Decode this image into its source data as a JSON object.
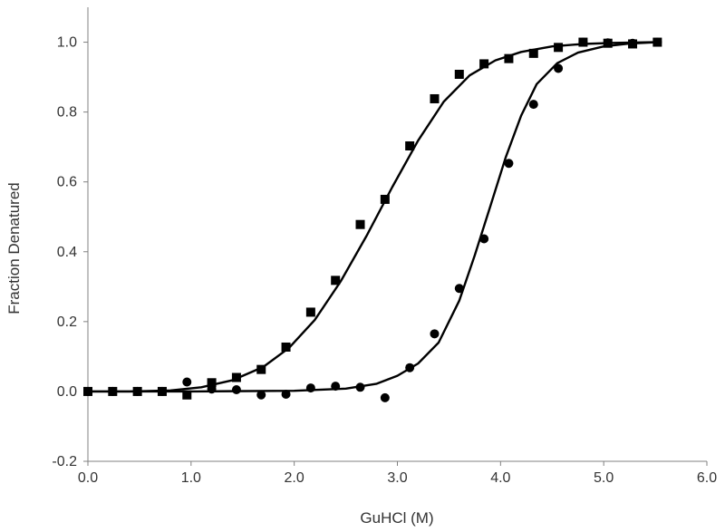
{
  "chart_data": {
    "type": "scatter",
    "title": "",
    "xlabel": "GuHCl (M)",
    "ylabel": "Fraction Denatured",
    "xlim": [
      0.0,
      6.0
    ],
    "ylim": [
      -0.2,
      1.1
    ],
    "xticks": [
      0.0,
      1.0,
      2.0,
      3.0,
      4.0,
      5.0,
      6.0
    ],
    "yticks": [
      -0.2,
      0.0,
      0.2,
      0.4,
      0.6,
      0.8,
      1.0
    ],
    "xtick_labels": [
      "0.0",
      "1.0",
      "2.0",
      "3.0",
      "4.0",
      "5.0",
      "6.0"
    ],
    "ytick_labels": [
      "-0.2",
      "0.0",
      "0.2",
      "0.4",
      "0.6",
      "0.8",
      "1.0"
    ],
    "grid": false,
    "legend": "none",
    "series": [
      {
        "marker": "square",
        "color": "#000000",
        "x": [
          0.0,
          0.24,
          0.48,
          0.72,
          0.96,
          1.2,
          1.44,
          1.68,
          1.92,
          2.16,
          2.4,
          2.64,
          2.88,
          3.12,
          3.36,
          3.6,
          3.84,
          4.08,
          4.32,
          4.56,
          4.8,
          5.04,
          5.28,
          5.52
        ],
        "y": [
          0.0,
          0.0,
          0.0,
          0.0,
          -0.01,
          0.025,
          0.04,
          0.063,
          0.127,
          0.227,
          0.318,
          0.478,
          0.55,
          0.703,
          0.838,
          0.908,
          0.938,
          0.953,
          0.968,
          0.985,
          1.0,
          0.997,
          0.995,
          1.0
        ],
        "fit": {
          "x": [
            0.0,
            0.4,
            0.8,
            1.1,
            1.4,
            1.7,
            1.95,
            2.2,
            2.45,
            2.7,
            2.95,
            3.2,
            3.45,
            3.7,
            3.95,
            4.2,
            4.5,
            4.8,
            5.1,
            5.52
          ],
          "y": [
            0.0,
            0.0,
            0.003,
            0.012,
            0.032,
            0.07,
            0.125,
            0.205,
            0.315,
            0.445,
            0.585,
            0.718,
            0.83,
            0.905,
            0.948,
            0.972,
            0.988,
            0.995,
            0.998,
            1.0
          ]
        }
      },
      {
        "marker": "circle",
        "color": "#000000",
        "x": [
          0.0,
          0.24,
          0.48,
          0.72,
          0.96,
          1.2,
          1.44,
          1.68,
          1.92,
          2.16,
          2.4,
          2.64,
          2.88,
          3.12,
          3.36,
          3.6,
          3.84,
          4.08,
          4.32,
          4.56,
          4.8,
          5.04,
          5.28,
          5.52
        ],
        "y": [
          0.0,
          0.0,
          0.0,
          0.0,
          0.027,
          0.007,
          0.005,
          -0.01,
          -0.008,
          0.01,
          0.015,
          0.012,
          -0.018,
          0.068,
          0.165,
          0.295,
          0.437,
          0.653,
          0.822,
          0.925,
          1.0,
          0.998,
          0.997,
          1.0
        ],
        "fit": {
          "x": [
            0.0,
            1.0,
            2.0,
            2.5,
            2.8,
            3.0,
            3.2,
            3.4,
            3.6,
            3.75,
            3.9,
            4.05,
            4.2,
            4.35,
            4.55,
            4.75,
            5.0,
            5.25,
            5.52
          ],
          "y": [
            0.0,
            0.0,
            0.002,
            0.008,
            0.022,
            0.045,
            0.08,
            0.14,
            0.26,
            0.39,
            0.53,
            0.67,
            0.79,
            0.88,
            0.94,
            0.97,
            0.988,
            0.996,
            1.0
          ]
        }
      }
    ]
  }
}
